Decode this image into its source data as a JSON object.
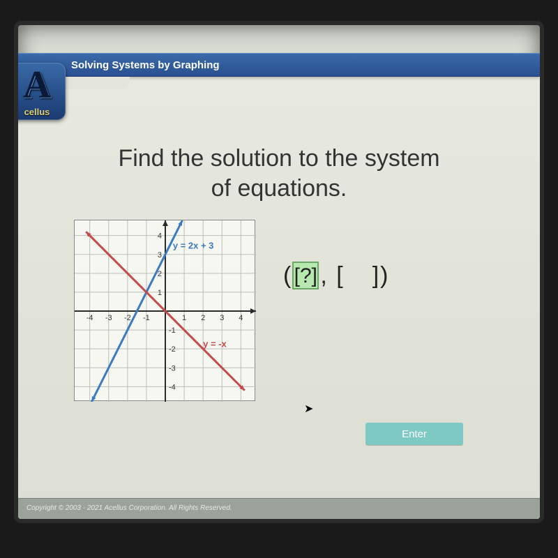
{
  "window": {
    "title": "Solving Systems by Graphing",
    "logo_text": "cellus",
    "footer": "Copyright © 2003 - 2021 Acellus Corporation. All Rights Reserved."
  },
  "question": {
    "prompt_line1": "Find the solution to the system",
    "prompt_line2": "of equations."
  },
  "graph": {
    "xlim": [
      -4.8,
      4.8
    ],
    "ylim": [
      -4.8,
      4.8
    ],
    "tick_step": 1,
    "x_ticks": [
      -4,
      -3,
      -2,
      -1,
      1,
      2,
      3,
      4
    ],
    "y_ticks_pos": [
      1,
      2,
      3,
      4
    ],
    "y_ticks_neg": [
      -1,
      -2,
      -3,
      -4
    ],
    "grid_color": "#b8c0b8",
    "axis_color": "#2a2a2a",
    "background_color": "#f7f7f1",
    "lines": [
      {
        "equation_label": "y = 2x + 3",
        "color": "#3a7ac0",
        "width": 3,
        "p1": [
          -3.9,
          -4.8
        ],
        "p2": [
          0.9,
          4.8
        ],
        "label_pos": [
          0.4,
          3.3
        ]
      },
      {
        "equation_label": "y = -x",
        "color": "#c24a4a",
        "width": 3,
        "p1": [
          -4.2,
          4.2
        ],
        "p2": [
          4.2,
          -4.2
        ],
        "label_pos": [
          2.0,
          -1.9
        ]
      }
    ]
  },
  "answer": {
    "open": "(",
    "slot1": "[?]",
    "comma": ",",
    "slot2_open": "[",
    "slot2_close": "]",
    "close": ")",
    "slot1_active": true
  },
  "buttons": {
    "enter_label": "Enter"
  },
  "colors": {
    "title_bar_top": "#3a6aa8",
    "title_bar_bottom": "#2a5090",
    "content_bg": "#e4e6dc",
    "enter_btn": "#7ec9c4",
    "active_slot_bg": "#b6e8b0",
    "active_slot_border": "#6aa865"
  }
}
